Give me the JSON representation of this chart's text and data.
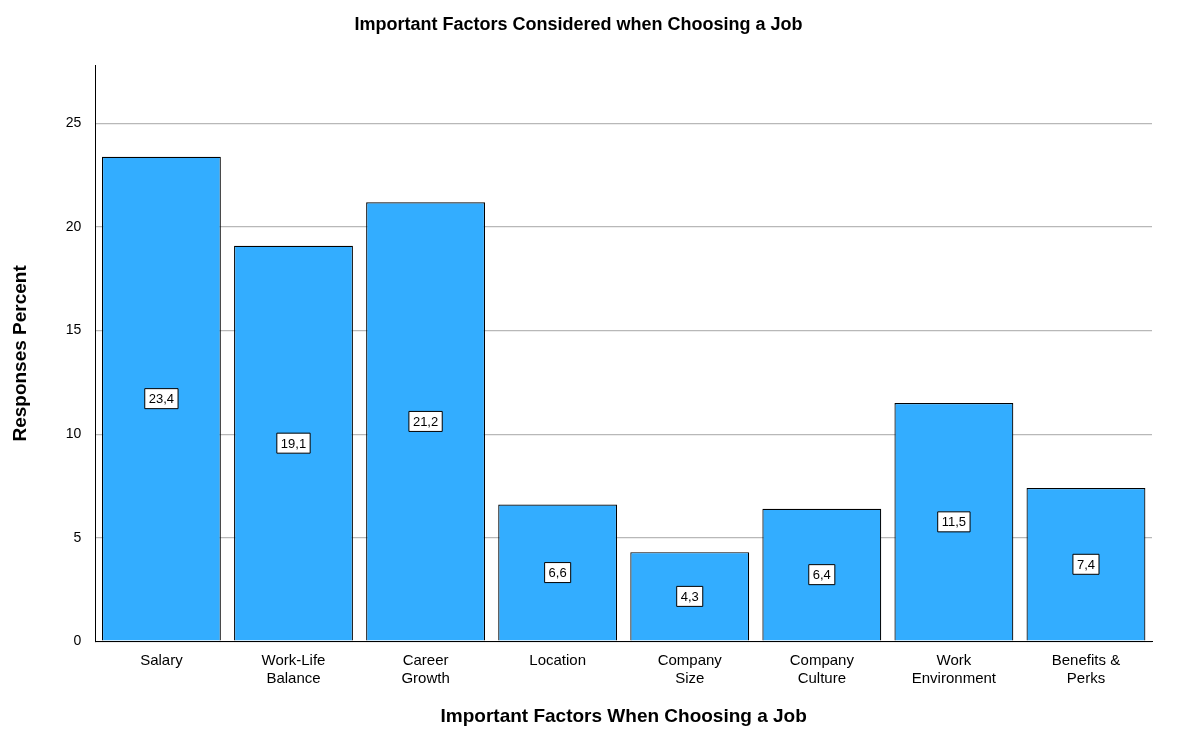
{
  "chart_data": {
    "type": "bar",
    "title": "Important Factors Considered when Choosing a Job",
    "xlabel": "Important Factors When Choosing a Job",
    "ylabel": "Responses Percent",
    "categories": [
      "Salary",
      "Work-Life Balance",
      "Career Growth",
      "Location",
      "Company Size",
      "Company Culture",
      "Work Environment",
      "Benefits & Perks"
    ],
    "values": [
      23.4,
      19.1,
      21.2,
      6.6,
      4.3,
      6.4,
      11.5,
      7.4
    ],
    "value_labels": [
      "23,4",
      "19,1",
      "21,2",
      "6,6",
      "4,3",
      "6,4",
      "11,5",
      "7,4"
    ],
    "color": "#33adff",
    "ylim": [
      0,
      27.8
    ],
    "yticks": [
      0,
      5,
      10,
      15,
      20,
      25
    ],
    "grid": "y",
    "legend": false
  }
}
